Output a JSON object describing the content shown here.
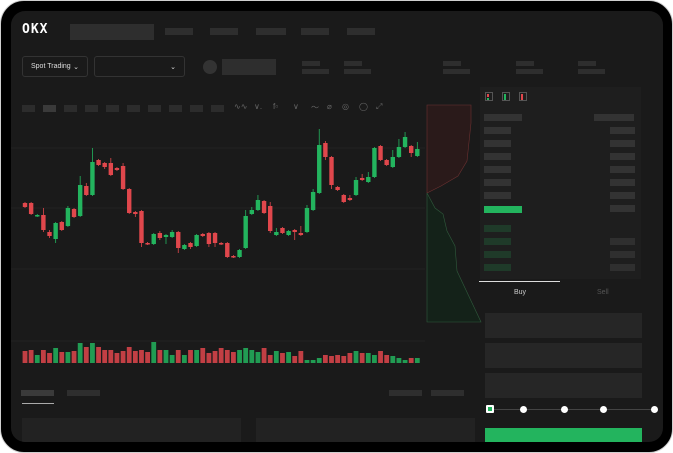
{
  "header": {
    "logo": "OKX"
  },
  "market_bar": {
    "mode_select": "Spot Trading",
    "pair_select": ""
  },
  "order_form": {
    "tabs": [
      {
        "label": "Buy",
        "active": true
      },
      {
        "label": "Sell",
        "active": false
      }
    ],
    "slider_levels": [
      0,
      25,
      50,
      75,
      100
    ],
    "slider_value": 0
  },
  "colors": {
    "up": "#23b45e",
    "down": "#e0474c",
    "background": "#1a1a1a"
  },
  "icons": [
    "indicator-icon",
    "draw-icon",
    "camera-icon",
    "settings-icon",
    "fullscreen-icon",
    "orderbook-both-icon",
    "orderbook-buy-icon",
    "orderbook-sell-icon"
  ],
  "chart_data": {
    "type": "candlestick",
    "candles": [
      [
        97,
        98,
        92,
        93
      ],
      [
        97,
        98,
        85,
        86
      ],
      [
        84,
        86,
        83,
        85
      ],
      [
        85,
        92,
        68,
        70
      ],
      [
        68,
        70,
        62,
        64
      ],
      [
        61,
        78,
        57,
        77
      ],
      [
        78,
        79,
        69,
        70
      ],
      [
        74,
        94,
        73,
        92
      ],
      [
        91,
        92,
        82,
        83
      ],
      [
        84,
        124,
        83,
        115
      ],
      [
        114,
        117,
        104,
        105
      ],
      [
        105,
        152,
        104,
        138
      ],
      [
        140,
        141,
        134,
        135
      ],
      [
        137,
        138,
        131,
        133
      ],
      [
        137,
        142,
        124,
        125
      ],
      [
        132,
        133,
        129,
        130
      ],
      [
        134,
        137,
        110,
        111
      ],
      [
        111,
        112,
        86,
        87
      ],
      [
        88,
        89,
        83,
        86
      ],
      [
        89,
        90,
        53,
        57
      ],
      [
        57,
        58,
        55,
        56
      ],
      [
        56,
        67,
        55,
        66
      ],
      [
        67,
        69,
        60,
        62
      ],
      [
        63,
        66,
        56,
        65
      ],
      [
        63,
        70,
        62,
        68
      ],
      [
        68,
        69,
        47,
        52
      ],
      [
        51,
        56,
        50,
        55
      ],
      [
        57,
        58,
        51,
        53
      ],
      [
        54,
        66,
        53,
        65
      ],
      [
        66,
        67,
        63,
        64
      ],
      [
        67,
        68,
        53,
        56
      ],
      [
        67,
        68,
        53,
        57
      ],
      [
        57,
        58,
        55,
        56
      ],
      [
        57,
        58,
        42,
        43
      ],
      [
        44,
        45,
        42,
        43
      ],
      [
        43,
        51,
        42,
        50
      ],
      [
        52,
        90,
        51,
        84
      ],
      [
        86,
        93,
        85,
        90
      ],
      [
        90,
        105,
        89,
        100
      ],
      [
        99,
        100,
        86,
        87
      ],
      [
        94,
        98,
        67,
        69
      ],
      [
        65,
        72,
        64,
        68
      ],
      [
        72,
        73,
        66,
        67
      ],
      [
        65,
        70,
        64,
        69
      ],
      [
        70,
        71,
        60,
        68
      ],
      [
        67,
        74,
        64,
        65
      ],
      [
        68,
        95,
        67,
        92
      ],
      [
        90,
        111,
        89,
        108
      ],
      [
        107,
        171,
        106,
        155
      ],
      [
        157,
        159,
        140,
        143
      ],
      [
        143,
        144,
        111,
        115
      ],
      [
        113,
        114,
        109,
        110
      ],
      [
        105,
        106,
        97,
        98
      ],
      [
        102,
        105,
        99,
        100
      ],
      [
        105,
        123,
        104,
        120
      ],
      [
        122,
        126,
        119,
        120
      ],
      [
        118,
        128,
        117,
        123
      ],
      [
        123,
        153,
        122,
        152
      ],
      [
        154,
        155,
        139,
        140
      ],
      [
        140,
        141,
        134,
        135
      ],
      [
        133,
        150,
        132,
        143
      ],
      [
        143,
        161,
        142,
        153
      ],
      [
        153,
        168,
        152,
        163
      ],
      [
        154,
        155,
        143,
        147
      ],
      [
        144,
        158,
        143,
        151
      ]
    ],
    "volume": [
      12,
      13,
      8,
      13,
      10,
      15,
      11,
      11,
      12,
      20,
      16,
      20,
      16,
      13,
      13,
      10,
      12,
      16,
      12,
      13,
      11,
      21,
      13,
      13,
      8,
      13,
      8,
      13,
      13,
      15,
      10,
      12,
      15,
      13,
      11,
      13,
      15,
      13,
      11,
      15,
      8,
      12,
      10,
      11,
      7,
      12,
      3,
      3,
      5,
      8,
      7,
      8,
      7,
      10,
      12,
      10,
      10,
      8,
      12,
      8,
      7,
      5,
      3,
      5,
      5
    ]
  }
}
